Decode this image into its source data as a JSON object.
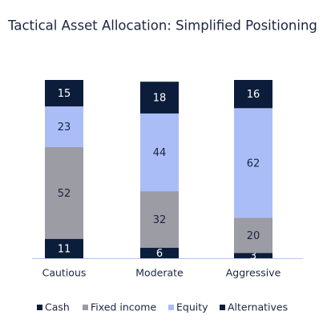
{
  "chart_data": {
    "type": "stacked_bar",
    "title": "Tactical Asset Allocation: Simplified Positioning",
    "categories": [
      "Cautious",
      "Moderate",
      "Aggressive"
    ],
    "series": [
      {
        "name": "Cash",
        "color": "#0b1d3a",
        "values": [
          11,
          6,
          3
        ]
      },
      {
        "name": "Fixed income",
        "color": "#9b9ca4",
        "values": [
          52,
          32,
          20
        ]
      },
      {
        "name": "Equity",
        "color": "#abbdf6",
        "values": [
          23,
          44,
          62
        ]
      },
      {
        "name": "Alternatives",
        "color": "#0b1d3a",
        "values": [
          15,
          18,
          16
        ]
      }
    ]
  }
}
